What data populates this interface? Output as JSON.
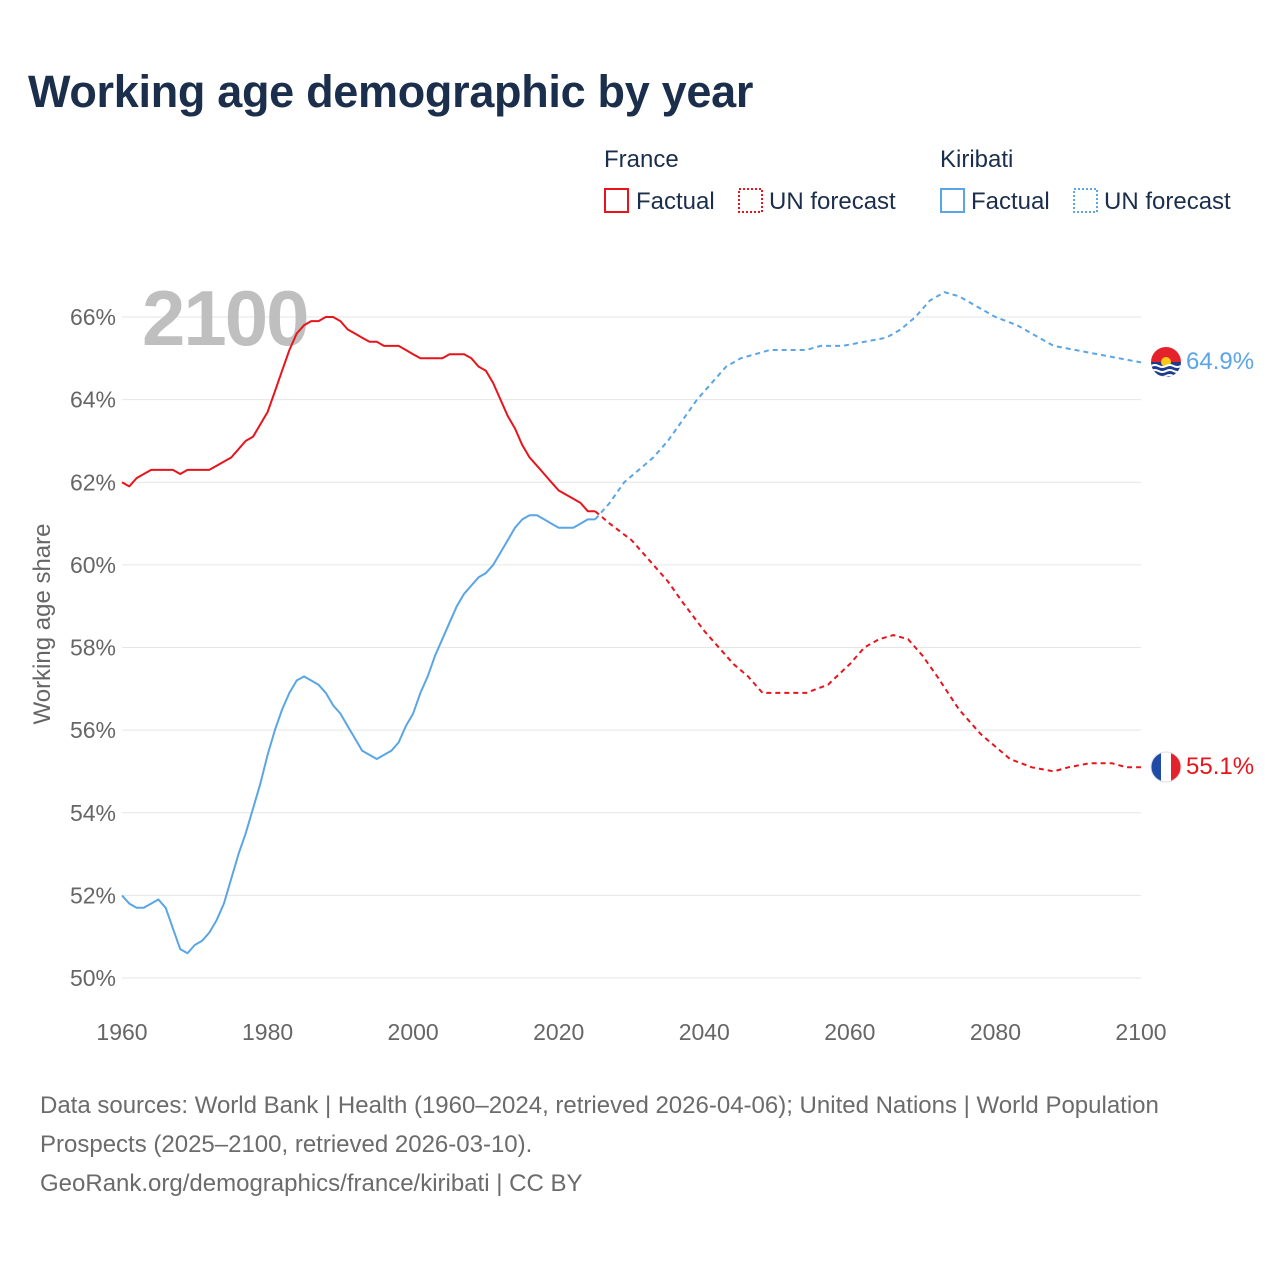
{
  "title": "Working age demographic by year",
  "footer": {
    "source_line": "Data sources: World Bank | Health (1960–2024, retrieved 2026-04-06); United Nations | World Population Prospects (2025–2100, retrieved 2026-03-10).",
    "url_line": "GeoRank.org/demographics/france/kiribati | CC BY"
  },
  "colors": {
    "france": "#e8141b",
    "kiribati": "#5aa5e6",
    "title": "#1b2e4b",
    "axis_text": "#666666",
    "grid": "#e6e6e6",
    "watermark": "#bfbfbf"
  },
  "chart_data": {
    "type": "line",
    "title": "Working age demographic by year",
    "xlabel": "",
    "ylabel": "Working age share",
    "xlim": [
      1960,
      2100
    ],
    "ylim": [
      50,
      67
    ],
    "x_ticks": [
      1960,
      1980,
      2000,
      2020,
      2040,
      2060,
      2080,
      2100
    ],
    "y_ticks": [
      50,
      52,
      54,
      56,
      58,
      60,
      62,
      64,
      66
    ],
    "y_tick_labels": [
      "50%",
      "52%",
      "54%",
      "56%",
      "58%",
      "60%",
      "62%",
      "64%",
      "66%"
    ],
    "year_watermark": "2100",
    "legend_position": "top-right",
    "legend": {
      "groups": [
        {
          "country": "France",
          "factual": "Factual",
          "forecast": "UN forecast"
        },
        {
          "country": "Kiribati",
          "factual": "Factual",
          "forecast": "UN forecast"
        }
      ]
    },
    "series": [
      {
        "name": "France",
        "end_label": "55.1%",
        "factual": [
          [
            1960,
            62.0
          ],
          [
            1961,
            61.9
          ],
          [
            1962,
            62.1
          ],
          [
            1963,
            62.2
          ],
          [
            1964,
            62.3
          ],
          [
            1965,
            62.3
          ],
          [
            1966,
            62.3
          ],
          [
            1967,
            62.3
          ],
          [
            1968,
            62.2
          ],
          [
            1969,
            62.3
          ],
          [
            1970,
            62.3
          ],
          [
            1971,
            62.3
          ],
          [
            1972,
            62.3
          ],
          [
            1973,
            62.4
          ],
          [
            1974,
            62.5
          ],
          [
            1975,
            62.6
          ],
          [
            1976,
            62.8
          ],
          [
            1977,
            63.0
          ],
          [
            1978,
            63.1
          ],
          [
            1979,
            63.4
          ],
          [
            1980,
            63.7
          ],
          [
            1981,
            64.2
          ],
          [
            1982,
            64.7
          ],
          [
            1983,
            65.2
          ],
          [
            1984,
            65.6
          ],
          [
            1985,
            65.8
          ],
          [
            1986,
            65.9
          ],
          [
            1987,
            65.9
          ],
          [
            1988,
            66.0
          ],
          [
            1989,
            66.0
          ],
          [
            1990,
            65.9
          ],
          [
            1991,
            65.7
          ],
          [
            1992,
            65.6
          ],
          [
            1993,
            65.5
          ],
          [
            1994,
            65.4
          ],
          [
            1995,
            65.4
          ],
          [
            1996,
            65.3
          ],
          [
            1997,
            65.3
          ],
          [
            1998,
            65.3
          ],
          [
            1999,
            65.2
          ],
          [
            2000,
            65.1
          ],
          [
            2001,
            65.0
          ],
          [
            2002,
            65.0
          ],
          [
            2003,
            65.0
          ],
          [
            2004,
            65.0
          ],
          [
            2005,
            65.1
          ],
          [
            2006,
            65.1
          ],
          [
            2007,
            65.1
          ],
          [
            2008,
            65.0
          ],
          [
            2009,
            64.8
          ],
          [
            2010,
            64.7
          ],
          [
            2011,
            64.4
          ],
          [
            2012,
            64.0
          ],
          [
            2013,
            63.6
          ],
          [
            2014,
            63.3
          ],
          [
            2015,
            62.9
          ],
          [
            2016,
            62.6
          ],
          [
            2017,
            62.4
          ],
          [
            2018,
            62.2
          ],
          [
            2019,
            62.0
          ],
          [
            2020,
            61.8
          ],
          [
            2021,
            61.7
          ],
          [
            2022,
            61.6
          ],
          [
            2023,
            61.5
          ],
          [
            2024,
            61.3
          ],
          [
            2025,
            61.3
          ]
        ],
        "forecast": [
          [
            2025,
            61.3
          ],
          [
            2027,
            61.0
          ],
          [
            2030,
            60.6
          ],
          [
            2032,
            60.2
          ],
          [
            2035,
            59.6
          ],
          [
            2037,
            59.1
          ],
          [
            2040,
            58.4
          ],
          [
            2044,
            57.6
          ],
          [
            2046,
            57.3
          ],
          [
            2048,
            56.9
          ],
          [
            2050,
            56.9
          ],
          [
            2054,
            56.9
          ],
          [
            2057,
            57.1
          ],
          [
            2060,
            57.6
          ],
          [
            2062,
            58.0
          ],
          [
            2064,
            58.2
          ],
          [
            2066,
            58.3
          ],
          [
            2068,
            58.2
          ],
          [
            2070,
            57.8
          ],
          [
            2072,
            57.3
          ],
          [
            2075,
            56.5
          ],
          [
            2078,
            55.9
          ],
          [
            2080,
            55.6
          ],
          [
            2082,
            55.3
          ],
          [
            2085,
            55.1
          ],
          [
            2088,
            55.0
          ],
          [
            2090,
            55.1
          ],
          [
            2093,
            55.2
          ],
          [
            2096,
            55.2
          ],
          [
            2098,
            55.1
          ],
          [
            2100,
            55.1
          ]
        ]
      },
      {
        "name": "Kiribati",
        "end_label": "64.9%",
        "factual": [
          [
            1960,
            52.0
          ],
          [
            1961,
            51.8
          ],
          [
            1962,
            51.7
          ],
          [
            1963,
            51.7
          ],
          [
            1964,
            51.8
          ],
          [
            1965,
            51.9
          ],
          [
            1966,
            51.7
          ],
          [
            1967,
            51.2
          ],
          [
            1968,
            50.7
          ],
          [
            1969,
            50.6
          ],
          [
            1970,
            50.8
          ],
          [
            1971,
            50.9
          ],
          [
            1972,
            51.1
          ],
          [
            1973,
            51.4
          ],
          [
            1974,
            51.8
          ],
          [
            1975,
            52.4
          ],
          [
            1976,
            53.0
          ],
          [
            1977,
            53.5
          ],
          [
            1978,
            54.1
          ],
          [
            1979,
            54.7
          ],
          [
            1980,
            55.4
          ],
          [
            1981,
            56.0
          ],
          [
            1982,
            56.5
          ],
          [
            1983,
            56.9
          ],
          [
            1984,
            57.2
          ],
          [
            1985,
            57.3
          ],
          [
            1986,
            57.2
          ],
          [
            1987,
            57.1
          ],
          [
            1988,
            56.9
          ],
          [
            1989,
            56.6
          ],
          [
            1990,
            56.4
          ],
          [
            1991,
            56.1
          ],
          [
            1992,
            55.8
          ],
          [
            1993,
            55.5
          ],
          [
            1994,
            55.4
          ],
          [
            1995,
            55.3
          ],
          [
            1996,
            55.4
          ],
          [
            1997,
            55.5
          ],
          [
            1998,
            55.7
          ],
          [
            1999,
            56.1
          ],
          [
            2000,
            56.4
          ],
          [
            2001,
            56.9
          ],
          [
            2002,
            57.3
          ],
          [
            2003,
            57.8
          ],
          [
            2004,
            58.2
          ],
          [
            2005,
            58.6
          ],
          [
            2006,
            59.0
          ],
          [
            2007,
            59.3
          ],
          [
            2008,
            59.5
          ],
          [
            2009,
            59.7
          ],
          [
            2010,
            59.8
          ],
          [
            2011,
            60.0
          ],
          [
            2012,
            60.3
          ],
          [
            2013,
            60.6
          ],
          [
            2014,
            60.9
          ],
          [
            2015,
            61.1
          ],
          [
            2016,
            61.2
          ],
          [
            2017,
            61.2
          ],
          [
            2018,
            61.1
          ],
          [
            2019,
            61.0
          ],
          [
            2020,
            60.9
          ],
          [
            2021,
            60.9
          ],
          [
            2022,
            60.9
          ],
          [
            2023,
            61.0
          ],
          [
            2024,
            61.1
          ],
          [
            2025,
            61.1
          ]
        ],
        "forecast": [
          [
            2025,
            61.1
          ],
          [
            2027,
            61.5
          ],
          [
            2029,
            62.0
          ],
          [
            2031,
            62.3
          ],
          [
            2033,
            62.6
          ],
          [
            2035,
            63.0
          ],
          [
            2037,
            63.5
          ],
          [
            2039,
            64.0
          ],
          [
            2041,
            64.4
          ],
          [
            2043,
            64.8
          ],
          [
            2045,
            65.0
          ],
          [
            2047,
            65.1
          ],
          [
            2049,
            65.2
          ],
          [
            2051,
            65.2
          ],
          [
            2054,
            65.2
          ],
          [
            2056,
            65.3
          ],
          [
            2059,
            65.3
          ],
          [
            2062,
            65.4
          ],
          [
            2065,
            65.5
          ],
          [
            2067,
            65.7
          ],
          [
            2069,
            66.0
          ],
          [
            2071,
            66.4
          ],
          [
            2073,
            66.6
          ],
          [
            2075,
            66.5
          ],
          [
            2077,
            66.3
          ],
          [
            2080,
            66.0
          ],
          [
            2083,
            65.8
          ],
          [
            2086,
            65.5
          ],
          [
            2088,
            65.3
          ],
          [
            2091,
            65.2
          ],
          [
            2094,
            65.1
          ],
          [
            2097,
            65.0
          ],
          [
            2100,
            64.9
          ]
        ]
      }
    ]
  }
}
